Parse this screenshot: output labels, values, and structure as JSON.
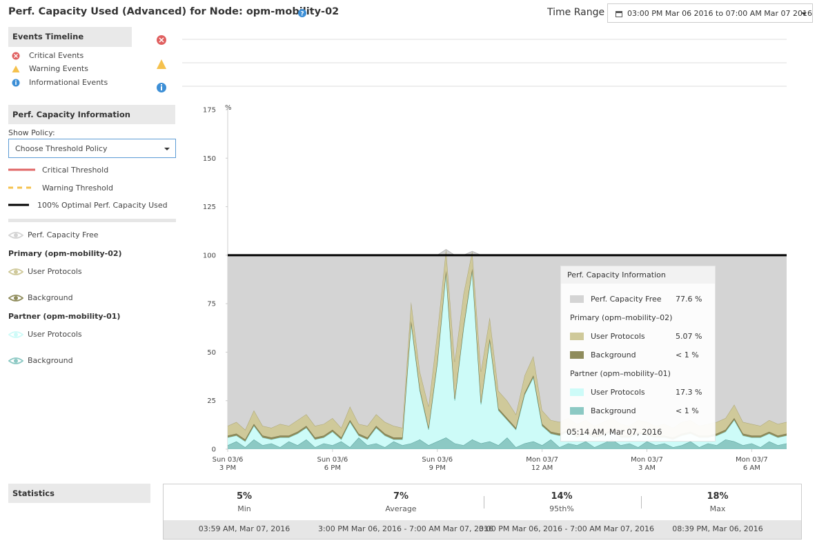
{
  "header": {
    "title": "Perf. Capacity Used (Advanced) for Node: opm-mobility-02",
    "time_range_label": "Time Range",
    "time_range": "03:00 PM Mar 06 2016 to 07:00 AM Mar 07 2016"
  },
  "events_timeline": {
    "title": "Events Timeline",
    "items": [
      "Critical Events",
      "Warning Events",
      "Informational Events"
    ]
  },
  "policy": {
    "title": "Perf. Capacity Information",
    "show_policy_label": "Show Policy:",
    "select": "Choose Threshold Policy",
    "thresholds": [
      "Critical Threshold",
      "Warning Threshold",
      "100% Optimal Perf. Capacity Used"
    ]
  },
  "chart_data": {
    "type": "area",
    "stacked": true,
    "y_unit": "%",
    "x": [
      0,
      0.25,
      0.5,
      0.75,
      1,
      1.25,
      1.5,
      1.75,
      2,
      2.25,
      2.5,
      2.75,
      3,
      3.25,
      3.5,
      3.75,
      4,
      4.25,
      4.5,
      4.75,
      5,
      5.25,
      5.5,
      5.75,
      6,
      6.25,
      6.5,
      6.75,
      7,
      7.25,
      7.5,
      7.75,
      8,
      8.25,
      8.5,
      8.75,
      9,
      9.25,
      9.5,
      9.75,
      10,
      10.25,
      10.5,
      10.75,
      11,
      11.25,
      11.5,
      11.75,
      12,
      12.25,
      12.5,
      12.75,
      13,
      13.25,
      13.5,
      13.75,
      14,
      14.25,
      14.5,
      14.75,
      15,
      15.25,
      15.5,
      15.75,
      16
    ],
    "xlim": [
      0,
      16
    ],
    "xticks": [
      {
        "value": 0,
        "label": [
          "Sun 03/6",
          "3 PM"
        ]
      },
      {
        "value": 3,
        "label": [
          "Sun 03/6",
          "6 PM"
        ]
      },
      {
        "value": 6,
        "label": [
          "Sun 03/6",
          "9 PM"
        ]
      },
      {
        "value": 9,
        "label": [
          "Mon 03/7",
          "12 AM"
        ]
      },
      {
        "value": 12,
        "label": [
          "Mon 03/7",
          "3 AM"
        ]
      },
      {
        "value": 15,
        "label": [
          "Mon 03/7",
          "6 AM"
        ]
      }
    ],
    "ylim": [
      0,
      175
    ],
    "yticks": [
      0,
      25,
      50,
      75,
      100,
      125,
      150,
      175
    ],
    "optimal_value": 100,
    "series": [
      {
        "name": "Perf. Capacity Free",
        "color": "#d4d4d4",
        "values": [
          88,
          86,
          90,
          80,
          88,
          89,
          87,
          88,
          85,
          82,
          88,
          87,
          84,
          89,
          78,
          87,
          88,
          82,
          86,
          88,
          89,
          24,
          60,
          78,
          40,
          0,
          55,
          20,
          0,
          60,
          32,
          70,
          75,
          82,
          62,
          52,
          80,
          85,
          86,
          84,
          87,
          85,
          88,
          86,
          84,
          87,
          88,
          85,
          86,
          88,
          87,
          89,
          86,
          85,
          88,
          87,
          86,
          84,
          77,
          86,
          87,
          88,
          85,
          87,
          86
        ]
      },
      {
        "name": "User Protocols",
        "group": "Primary (opm-mobility-02)",
        "color": "#cfc99a",
        "values": [
          5,
          6,
          5,
          7,
          5,
          5,
          6,
          5,
          6,
          6,
          6,
          6,
          6,
          5,
          7,
          5,
          6,
          6,
          6,
          6,
          5,
          10,
          9,
          11,
          15,
          11,
          19,
          17,
          9,
          16,
          11,
          9,
          9,
          7,
          9,
          10,
          7,
          6,
          6,
          6,
          6,
          6,
          5,
          6,
          6,
          6,
          5,
          6,
          6,
          5,
          6,
          5,
          6,
          6,
          5,
          6,
          6,
          6,
          7,
          6,
          6,
          5,
          6,
          6,
          6
        ]
      },
      {
        "name": "Background",
        "group": "Primary (opm-mobility-02)",
        "color": "#8f8c5c",
        "values": [
          1,
          1,
          1,
          1,
          1,
          1,
          1,
          1,
          1,
          1,
          1,
          1,
          1,
          1,
          1,
          1,
          1,
          1,
          1,
          1,
          1,
          1,
          1,
          1,
          1,
          1,
          1,
          1,
          1,
          1,
          1,
          1,
          1,
          1,
          1,
          1,
          1,
          1,
          1,
          1,
          1,
          1,
          1,
          1,
          1,
          1,
          1,
          1,
          1,
          1,
          1,
          1,
          1,
          1,
          1,
          1,
          1,
          1,
          1,
          1,
          1,
          1,
          1,
          1,
          1
        ]
      },
      {
        "name": "User Protocols",
        "group": "Partner (opm-mobility-01)",
        "color": "#cdfbf8",
        "values": [
          4,
          3,
          3,
          7,
          4,
          2,
          5,
          2,
          6,
          6,
          4,
          3,
          7,
          1,
          13,
          1,
          3,
          8,
          6,
          1,
          3,
          62,
          25,
          8,
          40,
          85,
          22,
          60,
          87,
          20,
          52,
          18,
          9,
          9,
          25,
          33,
          10,
          3,
          6,
          6,
          4,
          4,
          5,
          4,
          4,
          4,
          3,
          7,
          3,
          4,
          3,
          4,
          5,
          4,
          5,
          3,
          5,
          4,
          11,
          5,
          3,
          5,
          4,
          4,
          4
        ]
      },
      {
        "name": "Background",
        "group": "Partner (opm-mobility-01)",
        "color": "#8cc9c4",
        "values": [
          2,
          4,
          1,
          5,
          2,
          3,
          1,
          4,
          2,
          5,
          1,
          3,
          2,
          4,
          1,
          6,
          2,
          3,
          1,
          4,
          2,
          3,
          5,
          2,
          4,
          6,
          3,
          2,
          5,
          3,
          4,
          2,
          6,
          1,
          3,
          4,
          2,
          5,
          1,
          3,
          2,
          4,
          1,
          3,
          5,
          2,
          3,
          1,
          4,
          2,
          3,
          1,
          2,
          4,
          1,
          3,
          2,
          5,
          4,
          2,
          3,
          1,
          4,
          2,
          3
        ]
      }
    ]
  },
  "tooltip": {
    "title": "Perf. Capacity Information",
    "free": {
      "label": "Perf. Capacity Free",
      "value": "77.6 %"
    },
    "groups": [
      {
        "name": "Primary (opm–mobility–02)",
        "rows": [
          {
            "label": "User Protocols",
            "value": "5.07 %"
          },
          {
            "label": "Background",
            "value": "< 1 %"
          }
        ]
      },
      {
        "name": "Partner (opm–mobility–01)",
        "rows": [
          {
            "label": "User Protocols",
            "value": "17.3 %"
          },
          {
            "label": "Background",
            "value": "< 1 %"
          }
        ]
      }
    ],
    "time": "05:14 AM, Mar 07, 2016"
  },
  "statistics": {
    "title": "Statistics",
    "items": [
      {
        "value": "5%",
        "label": "Min",
        "time": "03:59 AM, Mar 07, 2016"
      },
      {
        "value": "7%",
        "label": "Average",
        "time": "3:00 PM Mar 06, 2016 - 7:00 AM Mar 07, 2016"
      },
      {
        "value": "14%",
        "label": "95th%",
        "time": "3:00 PM Mar 06, 2016 - 7:00 AM Mar 07, 2016"
      },
      {
        "value": "18%",
        "label": "Max",
        "time": "08:39 PM, Mar 06, 2016"
      }
    ]
  }
}
